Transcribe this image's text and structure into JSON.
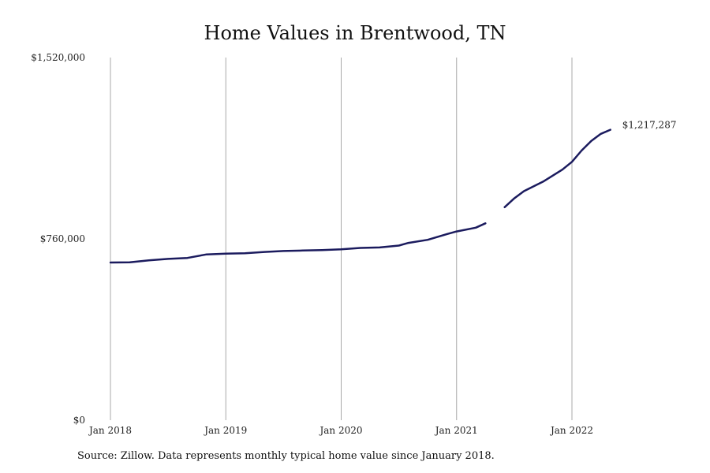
{
  "chart_data": {
    "type": "line",
    "title": "Home Values in Brentwood, TN",
    "xlabel": "",
    "ylabel": "",
    "ylim": [
      0,
      1520000
    ],
    "y_ticks": [
      {
        "value": 0,
        "label": "$0"
      },
      {
        "value": 760000,
        "label": "$760,000"
      },
      {
        "value": 1520000,
        "label": "$1,520,000"
      }
    ],
    "x_ticks": [
      {
        "value": "2018-01",
        "label": "Jan 2018"
      },
      {
        "value": "2019-01",
        "label": "Jan 2019"
      },
      {
        "value": "2020-01",
        "label": "Jan 2020"
      },
      {
        "value": "2021-01",
        "label": "Jan 2021"
      },
      {
        "value": "2022-01",
        "label": "Jan 2022"
      }
    ],
    "grid": {
      "vertical": true,
      "horizontal": false
    },
    "line_color": "#1b1b5e",
    "end_label": "$1,217,287",
    "series": [
      {
        "segments": [
          {
            "x": [
              "2018-01",
              "2018-03",
              "2018-05",
              "2018-07",
              "2018-09",
              "2018-11",
              "2019-01",
              "2019-03",
              "2019-05",
              "2019-07",
              "2019-09",
              "2019-11",
              "2020-01",
              "2020-03",
              "2020-05",
              "2020-07",
              "2020-08",
              "2020-10",
              "2020-11",
              "2020-12",
              "2021-01",
              "2021-03",
              "2021-04"
            ],
            "y": [
              661000,
              662000,
              670000,
              676000,
              680000,
              695000,
              698000,
              700000,
              705000,
              709000,
              711000,
              713000,
              716000,
              722000,
              724000,
              732000,
              743000,
              756000,
              768000,
              780000,
              791000,
              807000,
              825000
            ]
          },
          {
            "x": [
              "2021-06",
              "2021-07",
              "2021-08",
              "2021-10",
              "2021-12",
              "2022-01",
              "2022-02",
              "2022-03",
              "2022-04",
              "2022-05"
            ],
            "y": [
              893000,
              930000,
              960000,
              1000000,
              1050000,
              1083000,
              1130000,
              1170000,
              1200000,
              1217287
            ]
          }
        ]
      }
    ]
  },
  "source_note": "Source: Zillow. Data represents monthly typical home value since January 2018."
}
